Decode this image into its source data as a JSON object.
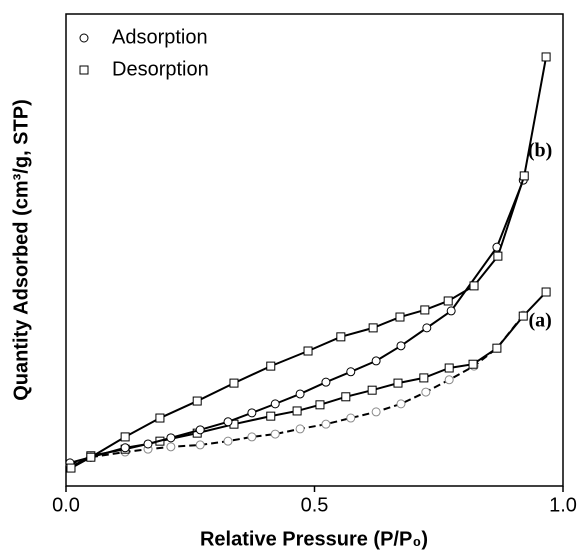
{
  "chart_data": {
    "type": "line",
    "x_label": "Relative Pressure (P/P₀)",
    "y_label": "Quantity Adsorbed (cm³/g, STP)",
    "xlim": [
      0,
      1
    ],
    "xticks": [
      {
        "value": 0,
        "label": "0.0"
      },
      0.5,
      {
        "value": 1,
        "label": "1.0"
      }
    ],
    "ylim": [
      0,
      100
    ],
    "legend": {
      "position": "upper left",
      "entries": [
        {
          "name": "Adsorption",
          "marker": "circle"
        },
        {
          "name": "Desorption",
          "marker": "square"
        }
      ]
    },
    "series": [
      {
        "marker": "circle",
        "color": "#000",
        "marker_color": "#8a8a8a",
        "line_style": "dashed",
        "x": [
          0.008,
          0.05,
          0.119,
          0.165,
          0.211,
          0.27,
          0.326,
          0.374,
          0.421,
          0.471,
          0.523,
          0.573,
          0.624,
          0.674,
          0.724,
          0.771,
          0.821,
          0.867,
          0.92
        ],
        "values": [
          4.7,
          6.1,
          7.2,
          7.8,
          8.3,
          8.7,
          9.5,
          10.4,
          11.0,
          12.1,
          13.1,
          14.4,
          15.7,
          17.4,
          19.9,
          22.5,
          25.4,
          29.2,
          36.2
        ]
      },
      {
        "marker": "square",
        "color": "#000",
        "marker_color": "#000",
        "line_style": "solid",
        "label": "(a)",
        "x": [
          0.01,
          0.05,
          0.119,
          0.189,
          0.264,
          0.338,
          0.412,
          0.465,
          0.511,
          0.563,
          0.616,
          0.668,
          0.72,
          0.771,
          0.819,
          0.867,
          0.92,
          0.966
        ],
        "values": [
          4.0,
          6.4,
          7.8,
          9.5,
          11.2,
          13.1,
          14.8,
          15.9,
          17.2,
          18.9,
          20.3,
          21.8,
          22.9,
          25.0,
          25.8,
          29.2,
          36.0,
          41.1
        ]
      },
      {
        "marker": "circle",
        "color": "#000",
        "marker_color": "#000",
        "line_style": "solid",
        "x": [
          0.008,
          0.05,
          0.119,
          0.165,
          0.211,
          0.27,
          0.326,
          0.374,
          0.421,
          0.471,
          0.523,
          0.573,
          0.624,
          0.674,
          0.726,
          0.775,
          0.867,
          0.92
        ],
        "values": [
          4.9,
          6.1,
          8.1,
          8.9,
          10.2,
          11.9,
          13.6,
          15.5,
          17.4,
          19.5,
          22.0,
          24.2,
          26.5,
          29.7,
          33.5,
          37.1,
          50.6,
          64.8
        ]
      },
      {
        "marker": "square",
        "color": "#000",
        "marker_color": "#000",
        "line_style": "solid",
        "label": "(b)",
        "x": [
          0.01,
          0.05,
          0.119,
          0.189,
          0.264,
          0.338,
          0.412,
          0.487,
          0.553,
          0.618,
          0.672,
          0.722,
          0.769,
          0.821,
          0.869,
          0.922,
          0.966
        ],
        "values": [
          3.8,
          6.1,
          10.4,
          14.4,
          18.0,
          21.8,
          25.4,
          28.6,
          31.6,
          33.5,
          35.8,
          37.3,
          39.2,
          42.4,
          48.7,
          65.7,
          90.9
        ]
      }
    ]
  }
}
